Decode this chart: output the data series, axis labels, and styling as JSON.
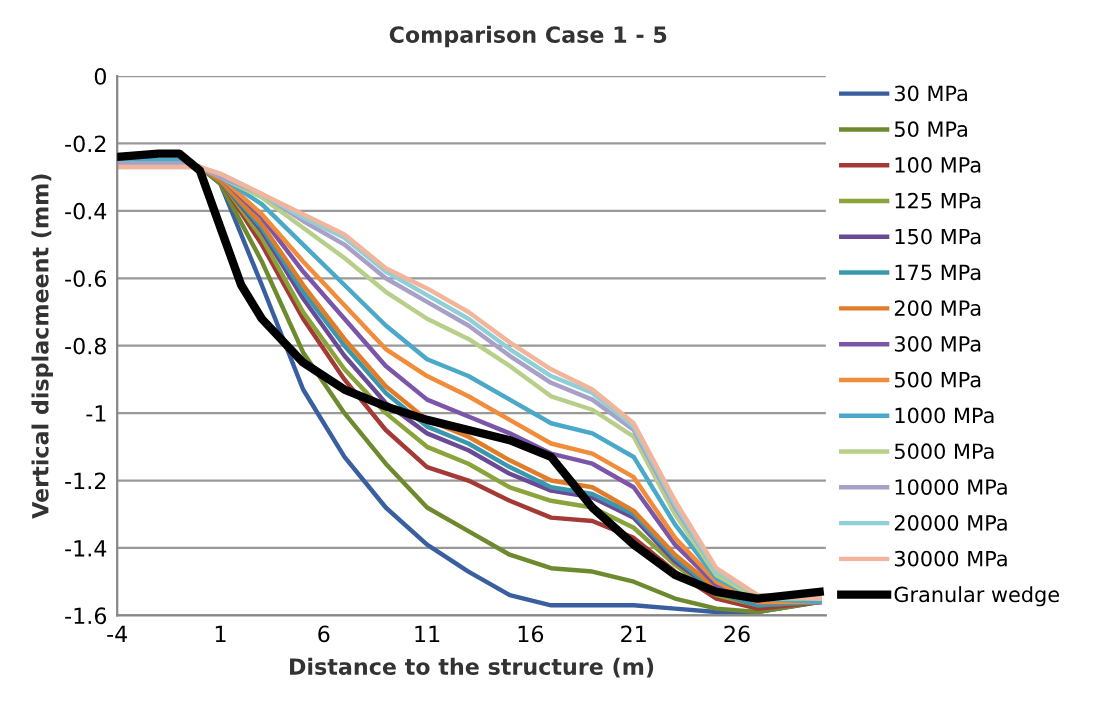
{
  "chart_data": {
    "type": "line",
    "title": "Comparison Case 1 - 5",
    "xlabel": "Distance to the structure (m)",
    "ylabel": "Vertical displacmeent (mm)",
    "x": [
      -4,
      -1,
      0,
      1,
      3,
      5,
      7,
      9,
      11,
      13,
      15,
      17,
      19,
      21,
      23,
      25,
      27,
      30
    ],
    "xlim": [
      -4,
      30.3
    ],
    "xticks": [
      -4,
      1,
      6,
      11,
      16,
      21,
      26
    ],
    "ylim": [
      -1.6,
      0
    ],
    "yticks": [
      -1.6,
      -1.4,
      -1.2,
      -1,
      -0.8,
      -0.6,
      -0.4,
      -0.2,
      0
    ],
    "grid": "y",
    "legend": "right",
    "marker": "none",
    "line_style": "solid",
    "series": [
      {
        "name": "30 MPa",
        "color": "#3a5fa0",
        "values": [
          -0.25,
          -0.25,
          -0.27,
          -0.32,
          -0.62,
          -0.93,
          -1.13,
          -1.28,
          -1.39,
          -1.47,
          -1.54,
          -1.57,
          -1.57,
          -1.57,
          -1.58,
          -1.59,
          -1.59,
          -1.56
        ]
      },
      {
        "name": "50 MPa",
        "color": "#6e8a2e",
        "values": [
          -0.25,
          -0.25,
          -0.27,
          -0.32,
          -0.55,
          -0.82,
          -1.0,
          -1.15,
          -1.28,
          -1.35,
          -1.42,
          -1.46,
          -1.47,
          -1.5,
          -1.55,
          -1.58,
          -1.59,
          -1.56
        ]
      },
      {
        "name": "100 MPa",
        "color": "#a33a36",
        "values": [
          -0.25,
          -0.25,
          -0.27,
          -0.31,
          -0.5,
          -0.72,
          -0.9,
          -1.05,
          -1.16,
          -1.2,
          -1.26,
          -1.31,
          -1.32,
          -1.37,
          -1.47,
          -1.55,
          -1.58,
          -1.56
        ]
      },
      {
        "name": "125 MPa",
        "color": "#8aa33a",
        "values": [
          -0.25,
          -0.25,
          -0.27,
          -0.31,
          -0.48,
          -0.7,
          -0.87,
          -1.0,
          -1.1,
          -1.15,
          -1.22,
          -1.26,
          -1.28,
          -1.34,
          -1.45,
          -1.54,
          -1.57,
          -1.56
        ]
      },
      {
        "name": "150 MPa",
        "color": "#6a4a95",
        "values": [
          -0.25,
          -0.25,
          -0.27,
          -0.31,
          -0.46,
          -0.66,
          -0.83,
          -0.97,
          -1.06,
          -1.11,
          -1.18,
          -1.23,
          -1.25,
          -1.31,
          -1.44,
          -1.53,
          -1.57,
          -1.56
        ]
      },
      {
        "name": "175 MPa",
        "color": "#3a97ad",
        "values": [
          -0.25,
          -0.25,
          -0.27,
          -0.31,
          -0.45,
          -0.64,
          -0.8,
          -0.94,
          -1.04,
          -1.09,
          -1.16,
          -1.22,
          -1.24,
          -1.3,
          -1.43,
          -1.53,
          -1.57,
          -1.56
        ]
      },
      {
        "name": "200 MPa",
        "color": "#e07d2a",
        "values": [
          -0.25,
          -0.25,
          -0.27,
          -0.31,
          -0.44,
          -0.62,
          -0.78,
          -0.92,
          -1.02,
          -1.07,
          -1.14,
          -1.2,
          -1.22,
          -1.29,
          -1.42,
          -1.52,
          -1.56,
          -1.56
        ]
      },
      {
        "name": "300 MPa",
        "color": "#7a55a8",
        "values": [
          -0.25,
          -0.25,
          -0.27,
          -0.3,
          -0.42,
          -0.58,
          -0.72,
          -0.86,
          -0.96,
          -1.01,
          -1.06,
          -1.12,
          -1.15,
          -1.22,
          -1.39,
          -1.51,
          -1.56,
          -1.56
        ]
      },
      {
        "name": "500 MPa",
        "color": "#f08c3a",
        "values": [
          -0.25,
          -0.25,
          -0.27,
          -0.3,
          -0.41,
          -0.55,
          -0.68,
          -0.81,
          -0.89,
          -0.95,
          -1.02,
          -1.09,
          -1.12,
          -1.19,
          -1.37,
          -1.5,
          -1.56,
          -1.56
        ]
      },
      {
        "name": "1000 MPa",
        "color": "#4aa8c8",
        "values": [
          -0.25,
          -0.25,
          -0.27,
          -0.3,
          -0.38,
          -0.5,
          -0.62,
          -0.74,
          -0.84,
          -0.89,
          -0.96,
          -1.03,
          -1.06,
          -1.13,
          -1.33,
          -1.49,
          -1.55,
          -1.56
        ]
      },
      {
        "name": "5000 MPa",
        "color": "#b8cf8a",
        "values": [
          -0.26,
          -0.26,
          -0.27,
          -0.3,
          -0.36,
          -0.45,
          -0.54,
          -0.64,
          -0.72,
          -0.78,
          -0.86,
          -0.95,
          -0.99,
          -1.07,
          -1.3,
          -1.48,
          -1.55,
          -1.55
        ]
      },
      {
        "name": "10000 MPa",
        "color": "#a9a0c8",
        "values": [
          -0.26,
          -0.26,
          -0.27,
          -0.3,
          -0.35,
          -0.43,
          -0.5,
          -0.6,
          -0.67,
          -0.74,
          -0.83,
          -0.91,
          -0.96,
          -1.05,
          -1.28,
          -1.47,
          -1.54,
          -1.55
        ]
      },
      {
        "name": "20000 MPa",
        "color": "#8fd0d8",
        "values": [
          -0.27,
          -0.27,
          -0.27,
          -0.29,
          -0.35,
          -0.42,
          -0.48,
          -0.58,
          -0.65,
          -0.72,
          -0.81,
          -0.89,
          -0.94,
          -1.04,
          -1.27,
          -1.47,
          -1.54,
          -1.55
        ]
      },
      {
        "name": "30000 MPa",
        "color": "#f2b49a",
        "values": [
          -0.27,
          -0.27,
          -0.27,
          -0.29,
          -0.35,
          -0.41,
          -0.47,
          -0.57,
          -0.63,
          -0.7,
          -0.79,
          -0.87,
          -0.93,
          -1.03,
          -1.26,
          -1.46,
          -1.54,
          -1.55
        ]
      },
      {
        "name": "Granular wedge",
        "color": "#000000",
        "x": [
          -4,
          -2,
          -1,
          0,
          1,
          2,
          3,
          5,
          7,
          9,
          11,
          13,
          15,
          17,
          19,
          21,
          23,
          25,
          27,
          30
        ],
        "values": [
          -0.24,
          -0.23,
          -0.23,
          -0.28,
          -0.45,
          -0.62,
          -0.72,
          -0.85,
          -0.93,
          -0.98,
          -1.02,
          -1.05,
          -1.08,
          -1.13,
          -1.28,
          -1.39,
          -1.48,
          -1.53,
          -1.55,
          -1.53
        ]
      }
    ]
  }
}
